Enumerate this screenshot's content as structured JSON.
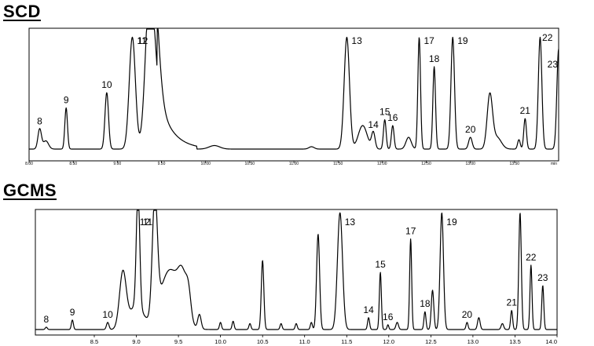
{
  "chart_data": [
    {
      "type": "line",
      "title": "SCD",
      "xlabel": "",
      "ylabel": "",
      "x_unit_label": "min",
      "xlim": [
        8.0,
        14.0
      ],
      "x_ticks": [
        "8.00",
        "8.50",
        "9.00",
        "9.50",
        "10.00",
        "10.50",
        "11.00",
        "11.50",
        "12.00",
        "12.50",
        "13.00",
        "13.50"
      ],
      "peaks": [
        {
          "label": "8",
          "x": 8.12,
          "y": 0.17
        },
        {
          "label": "9",
          "x": 8.42,
          "y": 0.35
        },
        {
          "label": "10",
          "x": 8.88,
          "y": 0.48
        },
        {
          "label": "11",
          "x": 9.17,
          "y": 0.95
        },
        {
          "label": "12",
          "x": 9.4,
          "y": 0.95
        },
        {
          "label": "13",
          "x": 11.6,
          "y": 0.95
        },
        {
          "label": "14",
          "x": 11.9,
          "y": 0.14
        },
        {
          "label": "15",
          "x": 12.03,
          "y": 0.25
        },
        {
          "label": "16",
          "x": 12.12,
          "y": 0.2
        },
        {
          "label": "17",
          "x": 12.42,
          "y": 0.95
        },
        {
          "label": "18",
          "x": 12.59,
          "y": 0.7
        },
        {
          "label": "19",
          "x": 12.8,
          "y": 0.95
        },
        {
          "label": "20",
          "x": 13.0,
          "y": 0.1
        },
        {
          "label": "21",
          "x": 13.62,
          "y": 0.26
        },
        {
          "label": "22",
          "x": 13.79,
          "y": 0.95
        },
        {
          "label": "23",
          "x": 14.0,
          "y": 0.85
        }
      ]
    },
    {
      "type": "line",
      "title": "GCMS",
      "xlabel": "",
      "ylabel": "",
      "xlim": [
        7.8,
        14.0
      ],
      "x_ticks": [
        "8.5",
        "9.0",
        "9.5",
        "10.0",
        "10.5",
        "11.0",
        "11.5",
        "12.0",
        "12.5",
        "13.0",
        "13.5",
        "14.0"
      ],
      "peaks": [
        {
          "label": "8",
          "x": 7.93,
          "y": 0.02
        },
        {
          "label": "9",
          "x": 8.24,
          "y": 0.08
        },
        {
          "label": "10",
          "x": 8.66,
          "y": 0.06
        },
        {
          "label": "11",
          "x": 9.02,
          "y": 0.98
        },
        {
          "label": "12",
          "x": 9.22,
          "y": 0.98
        },
        {
          "label": "13",
          "x": 11.42,
          "y": 0.98
        },
        {
          "label": "14",
          "x": 11.76,
          "y": 0.1
        },
        {
          "label": "15",
          "x": 11.9,
          "y": 0.48
        },
        {
          "label": "16",
          "x": 11.99,
          "y": 0.04
        },
        {
          "label": "17",
          "x": 12.26,
          "y": 0.76
        },
        {
          "label": "18",
          "x": 12.43,
          "y": 0.15
        },
        {
          "label": "19",
          "x": 12.63,
          "y": 0.98
        },
        {
          "label": "20",
          "x": 12.93,
          "y": 0.06
        },
        {
          "label": "21",
          "x": 13.46,
          "y": 0.16
        },
        {
          "label": "22",
          "x": 13.69,
          "y": 0.54
        },
        {
          "label": "23",
          "x": 13.83,
          "y": 0.37
        }
      ]
    }
  ]
}
